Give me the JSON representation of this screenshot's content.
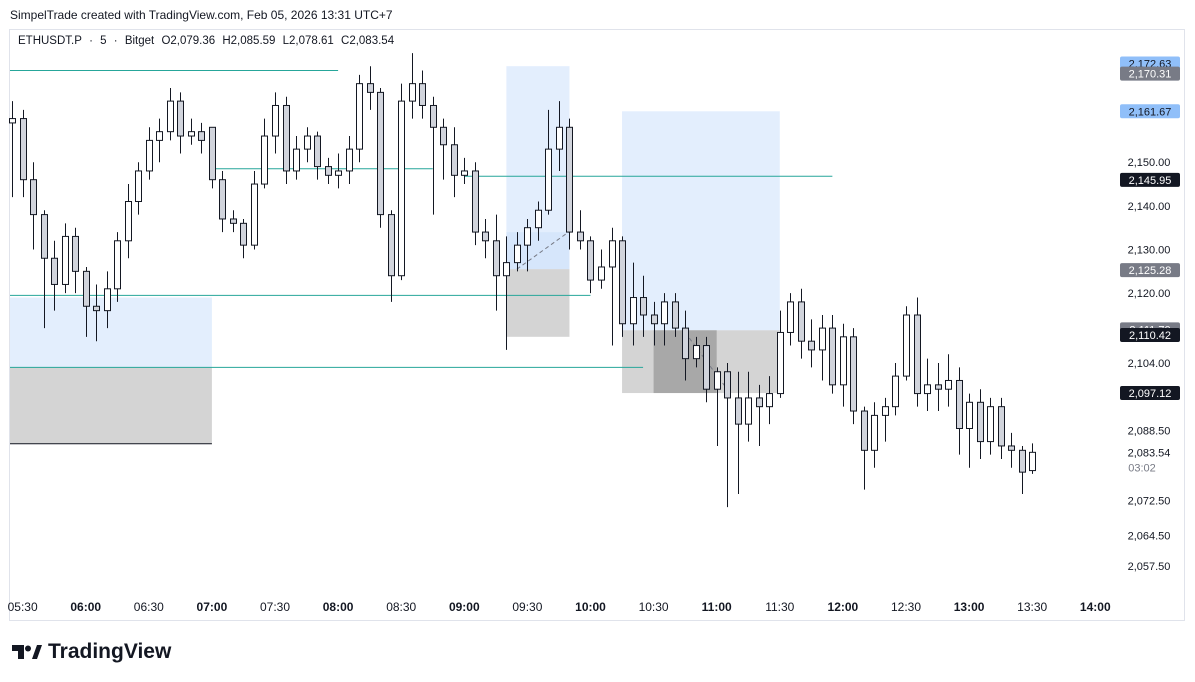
{
  "caption": "SimpelTrade created with TradingView.com, Feb 05, 2026 13:31 UTC+7",
  "symbol": {
    "name": "ETHUSDT.P",
    "sep1": "·",
    "interval": "5",
    "sep2": "·",
    "exchange": "Bitget",
    "open": "O2,079.36",
    "high": "H2,085.59",
    "low": "L2,078.61",
    "close": "C2,083.54"
  },
  "brand": {
    "name": "TradingView"
  },
  "colors": {
    "up_body": "#ffffff",
    "down_body": "#d1d4dc",
    "wick": "#131722",
    "level_line": "#26a69a",
    "zone_blue": "#e3eefd",
    "zone_gray": "#bdbdbd",
    "label_blue": "#90bff9",
    "label_gray": "#787b86",
    "label_dark": "#131722"
  },
  "chart_data": {
    "type": "candlestick",
    "ylim": [
      2052,
      2178
    ],
    "xlim": [
      "05:24",
      "14:07"
    ],
    "x_ticks": [
      "05:30",
      "06:00",
      "06:30",
      "07:00",
      "07:30",
      "08:00",
      "08:30",
      "09:00",
      "09:30",
      "10:00",
      "10:30",
      "11:00",
      "11:30",
      "12:00",
      "12:30",
      "13:00",
      "13:30",
      "14:00"
    ],
    "bold_ticks": [
      "06:00",
      "07:00",
      "08:00",
      "09:00",
      "10:00",
      "11:00",
      "12:00",
      "13:00",
      "14:00"
    ],
    "y_ticks": [
      "2,150.00",
      "2,140.00",
      "2,130.00",
      "2,120.00",
      "2,104.00",
      "2,088.50",
      "2,072.50",
      "2,064.50",
      "2,057.50"
    ],
    "last_price_label": "2,083.54",
    "countdown": "03:02",
    "price_labels": [
      {
        "value": 2172.63,
        "text": "2,172.63",
        "style": "blue"
      },
      {
        "value": 2170.31,
        "text": "2,170.31",
        "style": "gray"
      },
      {
        "value": 2161.67,
        "text": "2,161.67",
        "style": "blue"
      },
      {
        "value": 2145.95,
        "text": "2,145.95",
        "style": "dark"
      },
      {
        "value": 2125.28,
        "text": "2,125.28",
        "style": "gray"
      },
      {
        "value": 2111.7,
        "text": "2,111.70",
        "style": "gray"
      },
      {
        "value": 2110.42,
        "text": "2,110.42",
        "style": "dark"
      },
      {
        "value": 2097.12,
        "text": "2,097.12",
        "style": "dark"
      }
    ],
    "levels": [
      {
        "value": 2171.0,
        "from": "05:24",
        "to": "08:00"
      },
      {
        "value": 2148.5,
        "from": "07:00",
        "to": "08:45"
      },
      {
        "value": 2146.8,
        "from": "09:00",
        "to": "11:55"
      },
      {
        "value": 2119.5,
        "from": "05:24",
        "to": "10:00"
      },
      {
        "value": 2103.0,
        "from": "05:24",
        "to": "10:25"
      }
    ],
    "zones": [
      {
        "from": "05:24",
        "to": "07:00",
        "top": 2119.0,
        "bottom": 2103.0,
        "style": "blue"
      },
      {
        "from": "05:24",
        "to": "07:00",
        "top": 2103.0,
        "bottom": 2085.5,
        "style": "gray"
      },
      {
        "from": "09:20",
        "to": "09:50",
        "top": 2172.0,
        "bottom": 2134.0,
        "style": "blue"
      },
      {
        "from": "09:20",
        "to": "09:50",
        "top": 2134.0,
        "bottom": 2125.5,
        "style": "blue_soft"
      },
      {
        "from": "09:20",
        "to": "09:50",
        "top": 2125.5,
        "bottom": 2110.0,
        "style": "gray"
      },
      {
        "from": "10:15",
        "to": "11:30",
        "top": 2161.67,
        "bottom": 2111.5,
        "style": "blue"
      },
      {
        "from": "10:15",
        "to": "11:30",
        "top": 2111.5,
        "bottom": 2097.12,
        "style": "gray"
      },
      {
        "from": "10:30",
        "to": "11:00",
        "top": 2111.5,
        "bottom": 2097.12,
        "style": "gray_dark"
      }
    ],
    "diagonals": [
      {
        "x1": "09:25",
        "y1": 2125.5,
        "x2": "09:51",
        "y2": 2134.5
      },
      {
        "x1": "10:45",
        "y1": 2111.0,
        "x2": "11:05",
        "y2": 2098.0
      }
    ],
    "candles": [
      {
        "t": "05:25",
        "o": 2159,
        "h": 2164,
        "l": 2142,
        "c": 2160
      },
      {
        "t": "05:30",
        "o": 2160,
        "h": 2162,
        "l": 2142,
        "c": 2146
      },
      {
        "t": "05:35",
        "o": 2146,
        "h": 2150,
        "l": 2130,
        "c": 2138
      },
      {
        "t": "05:40",
        "o": 2138,
        "h": 2139,
        "l": 2112,
        "c": 2128
      },
      {
        "t": "05:45",
        "o": 2128,
        "h": 2132,
        "l": 2116,
        "c": 2122
      },
      {
        "t": "05:50",
        "o": 2122,
        "h": 2136,
        "l": 2120,
        "c": 2133
      },
      {
        "t": "05:55",
        "o": 2133,
        "h": 2135,
        "l": 2120,
        "c": 2125
      },
      {
        "t": "06:00",
        "o": 2125,
        "h": 2126,
        "l": 2110,
        "c": 2117
      },
      {
        "t": "06:05",
        "o": 2117,
        "h": 2122,
        "l": 2109,
        "c": 2116
      },
      {
        "t": "06:10",
        "o": 2116,
        "h": 2125,
        "l": 2112,
        "c": 2121
      },
      {
        "t": "06:15",
        "o": 2121,
        "h": 2134,
        "l": 2118,
        "c": 2132
      },
      {
        "t": "06:20",
        "o": 2132,
        "h": 2145,
        "l": 2128,
        "c": 2141
      },
      {
        "t": "06:25",
        "o": 2141,
        "h": 2150,
        "l": 2138,
        "c": 2148
      },
      {
        "t": "06:30",
        "o": 2148,
        "h": 2158,
        "l": 2146,
        "c": 2155
      },
      {
        "t": "06:35",
        "o": 2155,
        "h": 2160,
        "l": 2150,
        "c": 2157
      },
      {
        "t": "06:40",
        "o": 2157,
        "h": 2167,
        "l": 2155,
        "c": 2164
      },
      {
        "t": "06:45",
        "o": 2164,
        "h": 2166,
        "l": 2152,
        "c": 2156
      },
      {
        "t": "06:50",
        "o": 2156,
        "h": 2160,
        "l": 2154,
        "c": 2157
      },
      {
        "t": "06:55",
        "o": 2157,
        "h": 2159,
        "l": 2152,
        "c": 2155
      },
      {
        "t": "07:00",
        "o": 2158,
        "h": 2158,
        "l": 2144,
        "c": 2146
      },
      {
        "t": "07:05",
        "o": 2146,
        "h": 2148,
        "l": 2134,
        "c": 2137
      },
      {
        "t": "07:10",
        "o": 2137,
        "h": 2139,
        "l": 2134,
        "c": 2136
      },
      {
        "t": "07:15",
        "o": 2136,
        "h": 2137,
        "l": 2128,
        "c": 2131
      },
      {
        "t": "07:20",
        "o": 2131,
        "h": 2148,
        "l": 2130,
        "c": 2145
      },
      {
        "t": "07:25",
        "o": 2145,
        "h": 2160,
        "l": 2144,
        "c": 2156
      },
      {
        "t": "07:30",
        "o": 2156,
        "h": 2166,
        "l": 2152,
        "c": 2163
      },
      {
        "t": "07:35",
        "o": 2163,
        "h": 2165,
        "l": 2145,
        "c": 2148
      },
      {
        "t": "07:40",
        "o": 2148,
        "h": 2156,
        "l": 2146,
        "c": 2153
      },
      {
        "t": "07:45",
        "o": 2153,
        "h": 2158,
        "l": 2150,
        "c": 2156
      },
      {
        "t": "07:50",
        "o": 2156,
        "h": 2157,
        "l": 2146,
        "c": 2149
      },
      {
        "t": "07:55",
        "o": 2149,
        "h": 2151,
        "l": 2145,
        "c": 2147
      },
      {
        "t": "08:00",
        "o": 2147,
        "h": 2152,
        "l": 2144,
        "c": 2148
      },
      {
        "t": "08:05",
        "o": 2148,
        "h": 2156,
        "l": 2145,
        "c": 2153
      },
      {
        "t": "08:10",
        "o": 2153,
        "h": 2170,
        "l": 2150,
        "c": 2168
      },
      {
        "t": "08:15",
        "o": 2168,
        "h": 2172,
        "l": 2162,
        "c": 2166
      },
      {
        "t": "08:20",
        "o": 2166,
        "h": 2167,
        "l": 2135,
        "c": 2138
      },
      {
        "t": "08:25",
        "o": 2138,
        "h": 2139,
        "l": 2118,
        "c": 2124
      },
      {
        "t": "08:30",
        "o": 2124,
        "h": 2168,
        "l": 2123,
        "c": 2164
      },
      {
        "t": "08:35",
        "o": 2164,
        "h": 2175,
        "l": 2160,
        "c": 2168
      },
      {
        "t": "08:40",
        "o": 2168,
        "h": 2171,
        "l": 2160,
        "c": 2163
      },
      {
        "t": "08:45",
        "o": 2163,
        "h": 2165,
        "l": 2138,
        "c": 2158
      },
      {
        "t": "08:50",
        "o": 2158,
        "h": 2160,
        "l": 2146,
        "c": 2154
      },
      {
        "t": "08:55",
        "o": 2154,
        "h": 2158,
        "l": 2142,
        "c": 2147
      },
      {
        "t": "09:00",
        "o": 2147,
        "h": 2151,
        "l": 2145,
        "c": 2148
      },
      {
        "t": "09:05",
        "o": 2148,
        "h": 2150,
        "l": 2131,
        "c": 2134
      },
      {
        "t": "09:10",
        "o": 2134,
        "h": 2137,
        "l": 2128,
        "c": 2132
      },
      {
        "t": "09:15",
        "o": 2132,
        "h": 2138,
        "l": 2116,
        "c": 2124
      },
      {
        "t": "09:20",
        "o": 2124,
        "h": 2133,
        "l": 2107,
        "c": 2127
      },
      {
        "t": "09:25",
        "o": 2127,
        "h": 2134,
        "l": 2125,
        "c": 2131
      },
      {
        "t": "09:30",
        "o": 2131,
        "h": 2137,
        "l": 2125,
        "c": 2135
      },
      {
        "t": "09:35",
        "o": 2135,
        "h": 2141,
        "l": 2132,
        "c": 2139
      },
      {
        "t": "09:40",
        "o": 2139,
        "h": 2162,
        "l": 2138,
        "c": 2153
      },
      {
        "t": "09:45",
        "o": 2153,
        "h": 2164,
        "l": 2148,
        "c": 2158
      },
      {
        "t": "09:50",
        "o": 2158,
        "h": 2160,
        "l": 2130,
        "c": 2134
      },
      {
        "t": "09:55",
        "o": 2134,
        "h": 2139,
        "l": 2130,
        "c": 2132
      },
      {
        "t": "10:00",
        "o": 2132,
        "h": 2133,
        "l": 2120,
        "c": 2123
      },
      {
        "t": "10:05",
        "o": 2123,
        "h": 2130,
        "l": 2121,
        "c": 2126
      },
      {
        "t": "10:10",
        "o": 2126,
        "h": 2135,
        "l": 2108,
        "c": 2132
      },
      {
        "t": "10:15",
        "o": 2132,
        "h": 2133,
        "l": 2110,
        "c": 2113
      },
      {
        "t": "10:20",
        "o": 2113,
        "h": 2127,
        "l": 2108,
        "c": 2119
      },
      {
        "t": "10:25",
        "o": 2119,
        "h": 2124,
        "l": 2110,
        "c": 2115
      },
      {
        "t": "10:30",
        "o": 2115,
        "h": 2118,
        "l": 2108,
        "c": 2113
      },
      {
        "t": "10:35",
        "o": 2113,
        "h": 2120,
        "l": 2108,
        "c": 2118
      },
      {
        "t": "10:40",
        "o": 2118,
        "h": 2120,
        "l": 2110,
        "c": 2112
      },
      {
        "t": "10:45",
        "o": 2112,
        "h": 2116,
        "l": 2100,
        "c": 2105
      },
      {
        "t": "10:50",
        "o": 2105,
        "h": 2110,
        "l": 2103,
        "c": 2108
      },
      {
        "t": "10:55",
        "o": 2108,
        "h": 2110,
        "l": 2095,
        "c": 2098
      },
      {
        "t": "11:00",
        "o": 2098,
        "h": 2103,
        "l": 2085,
        "c": 2102
      },
      {
        "t": "11:05",
        "o": 2102,
        "h": 2104,
        "l": 2071,
        "c": 2096
      },
      {
        "t": "11:10",
        "o": 2096,
        "h": 2102,
        "l": 2074,
        "c": 2090
      },
      {
        "t": "11:15",
        "o": 2090,
        "h": 2102,
        "l": 2086,
        "c": 2096
      },
      {
        "t": "11:20",
        "o": 2096,
        "h": 2099,
        "l": 2085,
        "c": 2094
      },
      {
        "t": "11:25",
        "o": 2094,
        "h": 2101,
        "l": 2090,
        "c": 2097
      },
      {
        "t": "11:30",
        "o": 2097,
        "h": 2116,
        "l": 2096,
        "c": 2111
      },
      {
        "t": "11:35",
        "o": 2111,
        "h": 2120,
        "l": 2108,
        "c": 2118
      },
      {
        "t": "11:40",
        "o": 2118,
        "h": 2121,
        "l": 2105,
        "c": 2109
      },
      {
        "t": "11:45",
        "o": 2109,
        "h": 2114,
        "l": 2103,
        "c": 2107
      },
      {
        "t": "11:50",
        "o": 2107,
        "h": 2115,
        "l": 2100,
        "c": 2112
      },
      {
        "t": "11:55",
        "o": 2112,
        "h": 2115,
        "l": 2097,
        "c": 2099
      },
      {
        "t": "12:00",
        "o": 2099,
        "h": 2113,
        "l": 2094,
        "c": 2110
      },
      {
        "t": "12:05",
        "o": 2110,
        "h": 2112,
        "l": 2090,
        "c": 2093
      },
      {
        "t": "12:10",
        "o": 2093,
        "h": 2094,
        "l": 2075,
        "c": 2084
      },
      {
        "t": "12:15",
        "o": 2084,
        "h": 2095,
        "l": 2080,
        "c": 2092
      },
      {
        "t": "12:20",
        "o": 2092,
        "h": 2096,
        "l": 2086,
        "c": 2094
      },
      {
        "t": "12:25",
        "o": 2094,
        "h": 2104,
        "l": 2092,
        "c": 2101
      },
      {
        "t": "12:30",
        "o": 2101,
        "h": 2117,
        "l": 2100,
        "c": 2115
      },
      {
        "t": "12:35",
        "o": 2115,
        "h": 2119,
        "l": 2094,
        "c": 2097
      },
      {
        "t": "12:40",
        "o": 2097,
        "h": 2105,
        "l": 2093,
        "c": 2099
      },
      {
        "t": "12:45",
        "o": 2099,
        "h": 2104,
        "l": 2093,
        "c": 2098
      },
      {
        "t": "12:50",
        "o": 2098,
        "h": 2106,
        "l": 2094,
        "c": 2100
      },
      {
        "t": "12:55",
        "o": 2100,
        "h": 2103,
        "l": 2083,
        "c": 2089
      },
      {
        "t": "13:00",
        "o": 2089,
        "h": 2097,
        "l": 2080,
        "c": 2095
      },
      {
        "t": "13:05",
        "o": 2095,
        "h": 2098,
        "l": 2082,
        "c": 2086
      },
      {
        "t": "13:10",
        "o": 2086,
        "h": 2096,
        "l": 2083,
        "c": 2094
      },
      {
        "t": "13:15",
        "o": 2094,
        "h": 2096,
        "l": 2082,
        "c": 2085
      },
      {
        "t": "13:20",
        "o": 2085,
        "h": 2088,
        "l": 2080,
        "c": 2084
      },
      {
        "t": "13:25",
        "o": 2084,
        "h": 2085,
        "l": 2074,
        "c": 2079
      },
      {
        "t": "13:30",
        "o": 2079.36,
        "h": 2085.59,
        "l": 2078.61,
        "c": 2083.54
      }
    ]
  }
}
